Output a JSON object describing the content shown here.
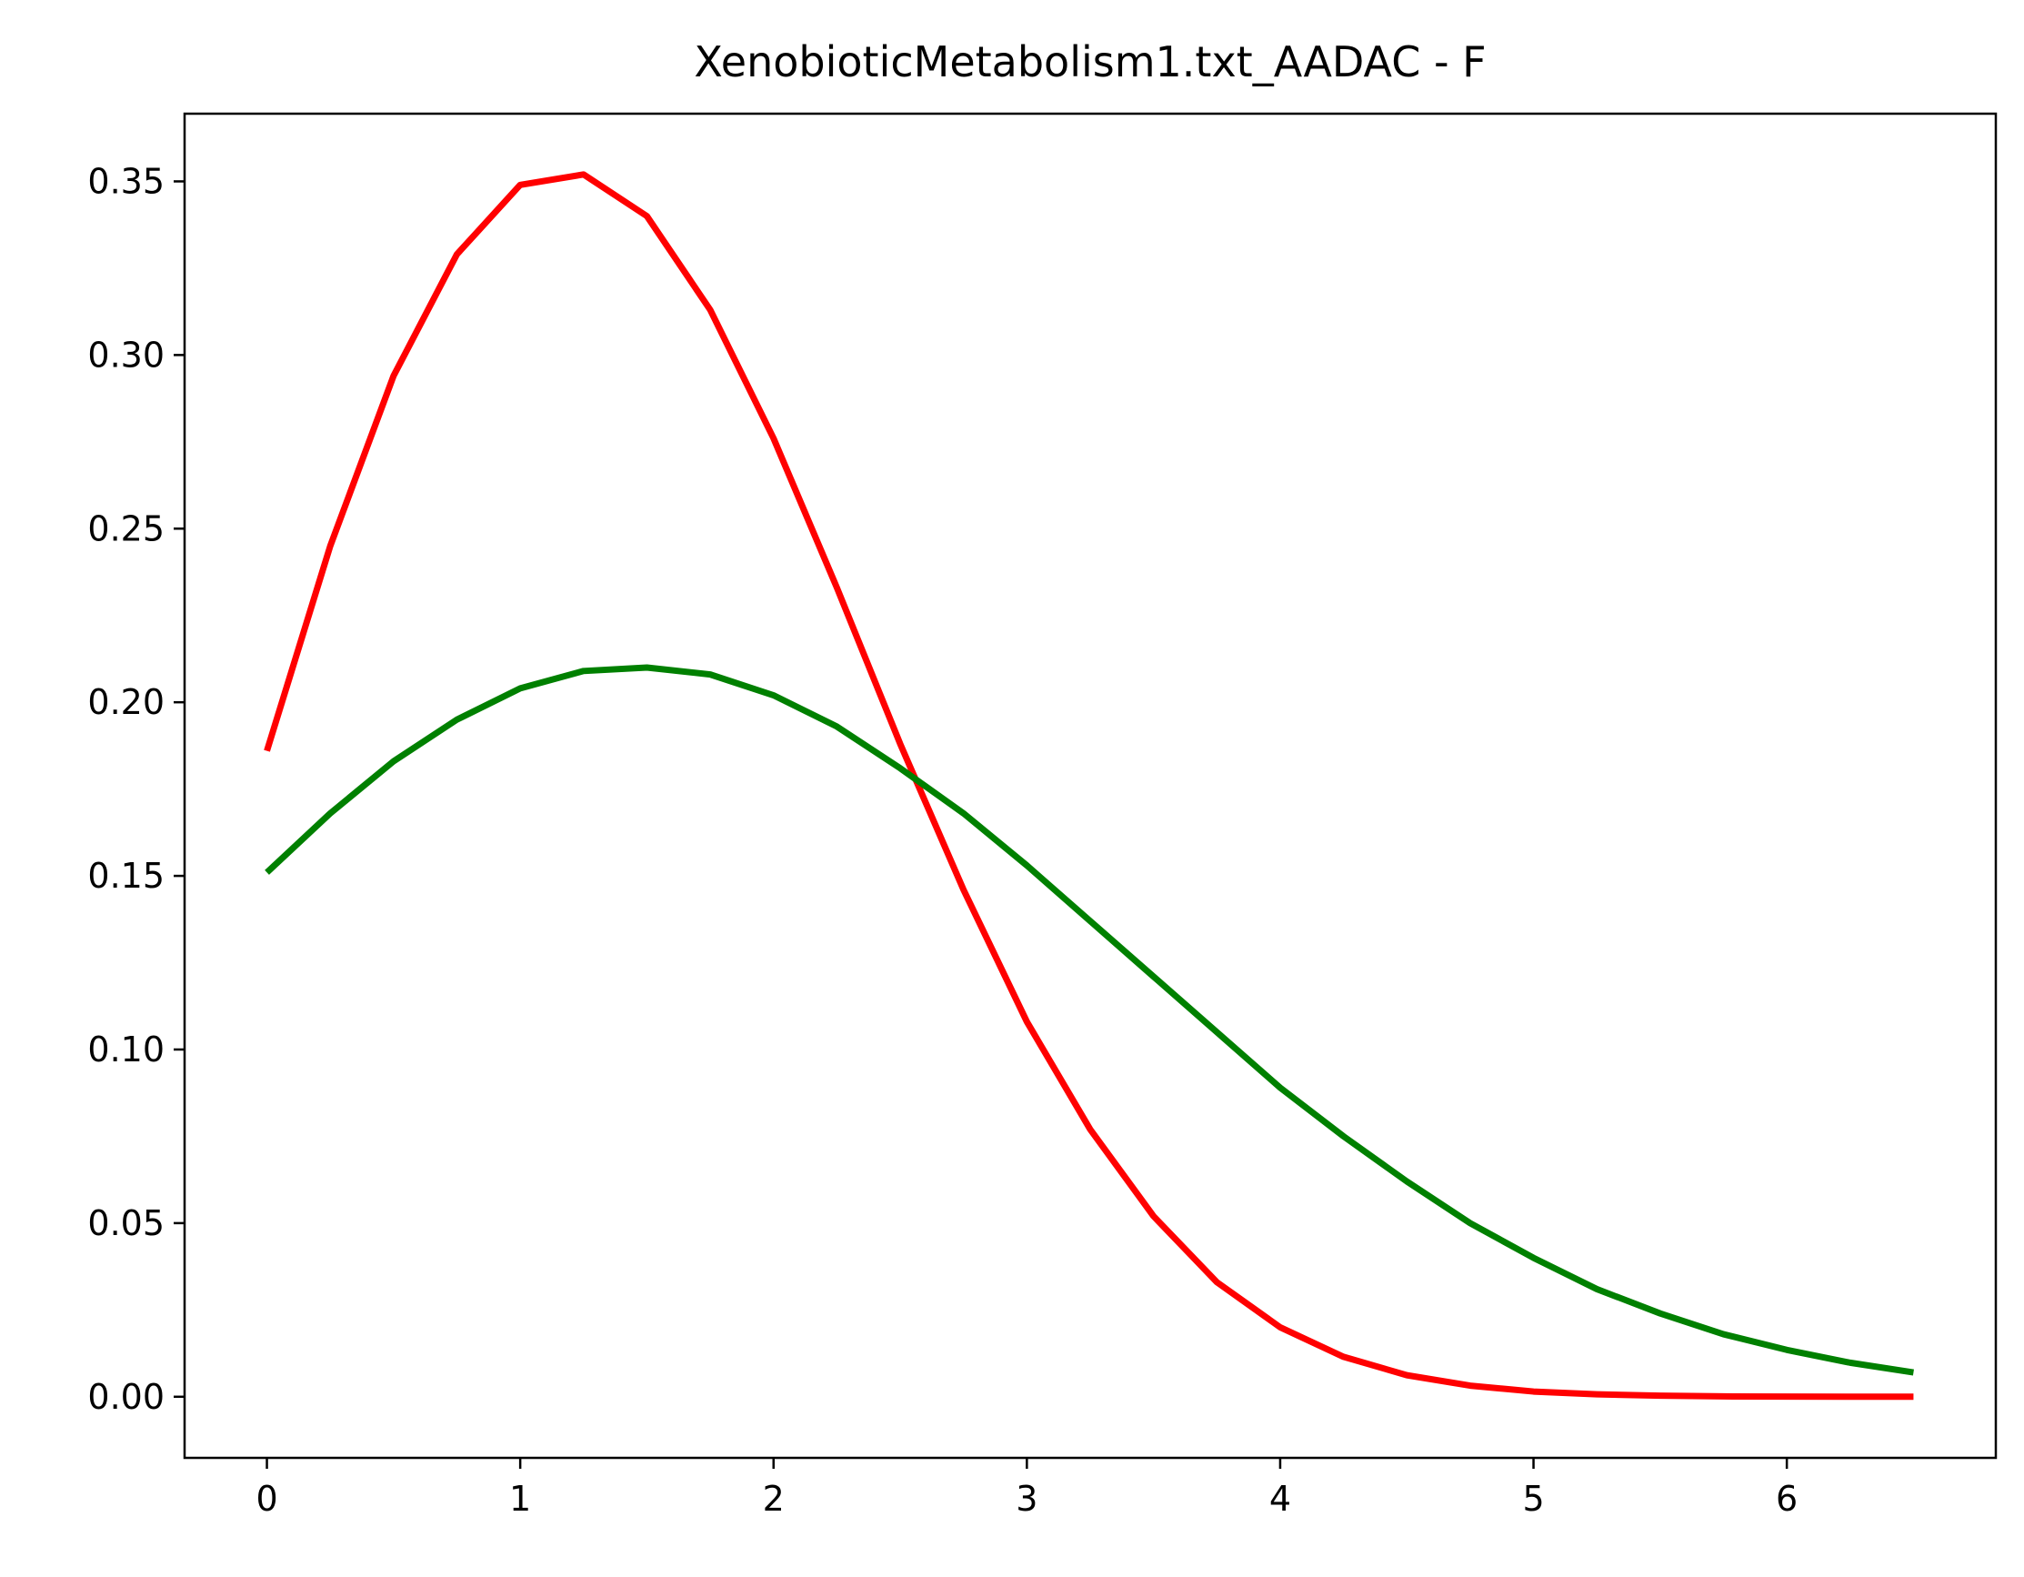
{
  "chart_data": {
    "type": "line",
    "title": "XenobioticMetabolism1.txt_AADAC - F",
    "xlabel": "",
    "ylabel": "",
    "xlim": [
      -0.325,
      6.825
    ],
    "ylim": [
      -0.0176,
      0.3695
    ],
    "x_ticks": [
      0,
      1,
      2,
      3,
      4,
      5,
      6
    ],
    "x_tick_labels": [
      "0",
      "1",
      "2",
      "3",
      "4",
      "5",
      "6"
    ],
    "y_ticks": [
      0.0,
      0.05,
      0.1,
      0.15,
      0.2,
      0.25,
      0.3,
      0.35
    ],
    "y_tick_labels": [
      "0.00",
      "0.05",
      "0.10",
      "0.15",
      "0.20",
      "0.25",
      "0.30",
      "0.35"
    ],
    "grid": false,
    "series": [
      {
        "color": "#ff0000",
        "x": [
          0,
          0.25,
          0.5,
          0.75,
          1.0,
          1.25,
          1.5,
          1.75,
          2.0,
          2.25,
          2.5,
          2.75,
          3.0,
          3.25,
          3.5,
          3.75,
          4.0,
          4.25,
          4.5,
          4.75,
          5.0,
          5.25,
          5.5,
          5.75,
          6.0,
          6.25,
          6.5
        ],
        "y": [
          0.186,
          0.245,
          0.294,
          0.329,
          0.349,
          0.352,
          0.34,
          0.313,
          0.276,
          0.233,
          0.188,
          0.146,
          0.108,
          0.077,
          0.052,
          0.033,
          0.02,
          0.0115,
          0.0062,
          0.0032,
          0.0015,
          0.0007,
          0.0003,
          0.0001,
          4e-05,
          1e-05,
          0.0
        ]
      },
      {
        "color": "#008000",
        "x": [
          0,
          0.25,
          0.5,
          0.75,
          1.0,
          1.25,
          1.5,
          1.75,
          2.0,
          2.25,
          2.5,
          2.75,
          3.0,
          3.25,
          3.5,
          3.75,
          4.0,
          4.25,
          4.5,
          4.75,
          5.0,
          5.25,
          5.5,
          5.75,
          6.0,
          6.25,
          6.5
        ],
        "y": [
          0.151,
          0.168,
          0.183,
          0.195,
          0.204,
          0.209,
          0.21,
          0.208,
          0.202,
          0.193,
          0.181,
          0.168,
          0.153,
          0.137,
          0.121,
          0.105,
          0.089,
          0.075,
          0.062,
          0.05,
          0.04,
          0.031,
          0.024,
          0.018,
          0.0135,
          0.0098,
          0.007
        ]
      }
    ]
  }
}
